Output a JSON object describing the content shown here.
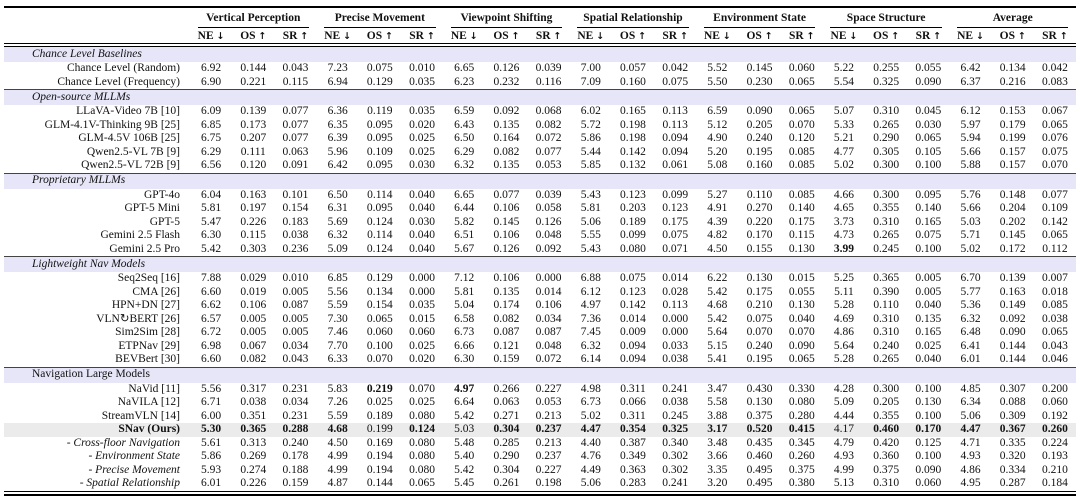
{
  "colors": {
    "section_band": "#e6e6f8",
    "highlight_row": "#ebebeb",
    "rule": "#000000"
  },
  "table": {
    "column_groups": [
      "Vertical Perception",
      "Precise Movement",
      "Viewpoint Shifting",
      "Spatial Relationship",
      "Environment State",
      "Space Structure",
      "Average"
    ],
    "sub_headers": [
      "NE ↓",
      "OS ↑",
      "SR ↑"
    ],
    "sections": [
      {
        "title": "Chance Level Baselines",
        "italic": true,
        "rows": [
          {
            "label": "Chance Level (Random)",
            "values": [
              "6.92",
              "0.144",
              "0.043",
              "7.23",
              "0.075",
              "0.010",
              "6.65",
              "0.126",
              "0.039",
              "7.00",
              "0.057",
              "0.042",
              "5.52",
              "0.145",
              "0.060",
              "5.22",
              "0.255",
              "0.055",
              "6.42",
              "0.134",
              "0.042"
            ],
            "bold": []
          },
          {
            "label": "Chance Level (Frequency)",
            "values": [
              "6.90",
              "0.221",
              "0.115",
              "6.94",
              "0.129",
              "0.035",
              "6.23",
              "0.232",
              "0.116",
              "7.09",
              "0.160",
              "0.075",
              "5.50",
              "0.230",
              "0.065",
              "5.54",
              "0.325",
              "0.090",
              "6.37",
              "0.216",
              "0.083"
            ],
            "bold": []
          }
        ]
      },
      {
        "title": "Open-source MLLMs",
        "italic": true,
        "rows": [
          {
            "label": "LLaVA-Video 7B [10]",
            "values": [
              "6.09",
              "0.139",
              "0.077",
              "6.36",
              "0.119",
              "0.035",
              "6.59",
              "0.092",
              "0.068",
              "6.02",
              "0.165",
              "0.113",
              "6.59",
              "0.090",
              "0.065",
              "5.07",
              "0.310",
              "0.045",
              "6.12",
              "0.153",
              "0.067"
            ],
            "bold": []
          },
          {
            "label": "GLM-4.1V-Thinking 9B [25]",
            "values": [
              "6.85",
              "0.173",
              "0.077",
              "6.35",
              "0.095",
              "0.020",
              "6.43",
              "0.135",
              "0.082",
              "5.72",
              "0.198",
              "0.113",
              "5.12",
              "0.205",
              "0.070",
              "5.33",
              "0.265",
              "0.030",
              "5.97",
              "0.179",
              "0.065"
            ],
            "bold": []
          },
          {
            "label": "GLM-4.5V 106B [25]",
            "values": [
              "6.75",
              "0.207",
              "0.077",
              "6.39",
              "0.095",
              "0.025",
              "6.50",
              "0.164",
              "0.072",
              "5.86",
              "0.198",
              "0.094",
              "4.90",
              "0.240",
              "0.120",
              "5.21",
              "0.290",
              "0.065",
              "5.94",
              "0.199",
              "0.076"
            ],
            "bold": []
          },
          {
            "label": "Qwen2.5-VL 7B [9]",
            "values": [
              "6.29",
              "0.111",
              "0.063",
              "5.96",
              "0.109",
              "0.025",
              "6.29",
              "0.082",
              "0.077",
              "5.44",
              "0.142",
              "0.094",
              "5.20",
              "0.195",
              "0.085",
              "4.77",
              "0.305",
              "0.105",
              "5.66",
              "0.157",
              "0.075"
            ],
            "bold": []
          },
          {
            "label": "Qwen2.5-VL 72B [9]",
            "values": [
              "6.56",
              "0.120",
              "0.091",
              "6.42",
              "0.095",
              "0.030",
              "6.32",
              "0.135",
              "0.053",
              "5.85",
              "0.132",
              "0.061",
              "5.08",
              "0.160",
              "0.085",
              "5.02",
              "0.300",
              "0.100",
              "5.88",
              "0.157",
              "0.070"
            ],
            "bold": []
          }
        ]
      },
      {
        "title": "Proprietary MLLMs",
        "italic": true,
        "rows": [
          {
            "label": "GPT-4o",
            "values": [
              "6.04",
              "0.163",
              "0.101",
              "6.50",
              "0.114",
              "0.040",
              "6.65",
              "0.077",
              "0.039",
              "5.43",
              "0.123",
              "0.099",
              "5.27",
              "0.110",
              "0.085",
              "4.66",
              "0.300",
              "0.095",
              "5.76",
              "0.148",
              "0.077"
            ],
            "bold": []
          },
          {
            "label": "GPT-5 Mini",
            "values": [
              "5.81",
              "0.197",
              "0.154",
              "6.31",
              "0.095",
              "0.040",
              "6.44",
              "0.106",
              "0.058",
              "5.81",
              "0.203",
              "0.123",
              "4.91",
              "0.270",
              "0.140",
              "4.65",
              "0.355",
              "0.140",
              "5.66",
              "0.204",
              "0.109"
            ],
            "bold": []
          },
          {
            "label": "GPT-5",
            "values": [
              "5.47",
              "0.226",
              "0.183",
              "5.69",
              "0.124",
              "0.030",
              "5.82",
              "0.145",
              "0.126",
              "5.06",
              "0.189",
              "0.175",
              "4.39",
              "0.220",
              "0.175",
              "3.73",
              "0.310",
              "0.165",
              "5.03",
              "0.202",
              "0.142"
            ],
            "bold": []
          },
          {
            "label": "Gemini 2.5 Flash",
            "values": [
              "6.30",
              "0.115",
              "0.038",
              "6.32",
              "0.114",
              "0.040",
              "6.51",
              "0.106",
              "0.048",
              "5.55",
              "0.099",
              "0.075",
              "4.82",
              "0.170",
              "0.115",
              "4.73",
              "0.265",
              "0.075",
              "5.71",
              "0.145",
              "0.065"
            ],
            "bold": []
          },
          {
            "label": "Gemini 2.5 Pro",
            "values": [
              "5.42",
              "0.303",
              "0.236",
              "5.09",
              "0.124",
              "0.040",
              "5.67",
              "0.126",
              "0.092",
              "5.43",
              "0.080",
              "0.071",
              "4.50",
              "0.155",
              "0.130",
              "3.99",
              "0.245",
              "0.100",
              "5.02",
              "0.172",
              "0.112"
            ],
            "bold": [
              15
            ]
          }
        ]
      },
      {
        "title": "Lightweight Nav Models",
        "italic": true,
        "rows": [
          {
            "label": "Seq2Seq [16]",
            "values": [
              "7.88",
              "0.029",
              "0.010",
              "6.85",
              "0.129",
              "0.000",
              "7.12",
              "0.106",
              "0.000",
              "6.88",
              "0.075",
              "0.014",
              "6.22",
              "0.130",
              "0.015",
              "5.25",
              "0.365",
              "0.005",
              "6.70",
              "0.139",
              "0.007"
            ],
            "bold": []
          },
          {
            "label": "CMA [26]",
            "values": [
              "6.60",
              "0.019",
              "0.005",
              "5.56",
              "0.134",
              "0.000",
              "5.81",
              "0.135",
              "0.014",
              "6.12",
              "0.123",
              "0.028",
              "5.42",
              "0.175",
              "0.055",
              "5.11",
              "0.390",
              "0.005",
              "5.77",
              "0.163",
              "0.018"
            ],
            "bold": []
          },
          {
            "label": "HPN+DN [27]",
            "values": [
              "6.62",
              "0.106",
              "0.087",
              "5.59",
              "0.154",
              "0.035",
              "5.04",
              "0.174",
              "0.106",
              "4.97",
              "0.142",
              "0.113",
              "4.68",
              "0.210",
              "0.130",
              "5.28",
              "0.110",
              "0.040",
              "5.36",
              "0.149",
              "0.085"
            ],
            "bold": []
          },
          {
            "label": "VLN↻BERT [26]",
            "values": [
              "6.57",
              "0.005",
              "0.005",
              "7.30",
              "0.065",
              "0.015",
              "6.58",
              "0.082",
              "0.034",
              "7.36",
              "0.014",
              "0.000",
              "5.42",
              "0.075",
              "0.040",
              "4.69",
              "0.310",
              "0.135",
              "6.32",
              "0.092",
              "0.038"
            ],
            "bold": []
          },
          {
            "label": "Sim2Sim [28]",
            "values": [
              "6.72",
              "0.005",
              "0.005",
              "7.46",
              "0.060",
              "0.060",
              "6.73",
              "0.087",
              "0.087",
              "7.45",
              "0.009",
              "0.000",
              "5.64",
              "0.070",
              "0.070",
              "4.86",
              "0.310",
              "0.165",
              "6.48",
              "0.090",
              "0.065"
            ],
            "bold": []
          },
          {
            "label": "ETPNav [29]",
            "values": [
              "6.98",
              "0.067",
              "0.034",
              "7.70",
              "0.100",
              "0.025",
              "6.66",
              "0.121",
              "0.048",
              "6.32",
              "0.094",
              "0.033",
              "5.15",
              "0.240",
              "0.090",
              "5.64",
              "0.240",
              "0.025",
              "6.41",
              "0.144",
              "0.043"
            ],
            "bold": []
          },
          {
            "label": "BEVBert [30]",
            "values": [
              "6.60",
              "0.082",
              "0.043",
              "6.33",
              "0.070",
              "0.020",
              "6.30",
              "0.159",
              "0.072",
              "6.14",
              "0.094",
              "0.038",
              "5.41",
              "0.195",
              "0.065",
              "5.28",
              "0.265",
              "0.040",
              "6.01",
              "0.144",
              "0.046"
            ],
            "bold": []
          }
        ]
      },
      {
        "title": "Navigation Large Models",
        "italic": false,
        "rows": [
          {
            "label": "NaVid [11]",
            "values": [
              "5.56",
              "0.317",
              "0.231",
              "5.83",
              "0.219",
              "0.070",
              "4.97",
              "0.266",
              "0.227",
              "4.98",
              "0.311",
              "0.241",
              "3.47",
              "0.430",
              "0.330",
              "4.28",
              "0.300",
              "0.100",
              "4.85",
              "0.307",
              "0.200"
            ],
            "bold": [
              4,
              6
            ]
          },
          {
            "label": "NaVILA [12]",
            "values": [
              "6.71",
              "0.038",
              "0.034",
              "7.26",
              "0.025",
              "0.025",
              "6.64",
              "0.063",
              "0.053",
              "6.73",
              "0.066",
              "0.038",
              "5.58",
              "0.130",
              "0.080",
              "5.09",
              "0.205",
              "0.130",
              "6.34",
              "0.088",
              "0.060"
            ],
            "bold": []
          },
          {
            "label": "StreamVLN [14]",
            "values": [
              "6.00",
              "0.351",
              "0.231",
              "5.59",
              "0.189",
              "0.080",
              "5.42",
              "0.271",
              "0.213",
              "5.02",
              "0.311",
              "0.245",
              "3.88",
              "0.375",
              "0.280",
              "4.44",
              "0.355",
              "0.100",
              "5.06",
              "0.309",
              "0.192"
            ],
            "bold": []
          },
          {
            "label": "SNav (Ours)",
            "label_bold": true,
            "highlight": true,
            "values": [
              "5.30",
              "0.365",
              "0.288",
              "4.68",
              "0.199",
              "0.124",
              "5.03",
              "0.304",
              "0.237",
              "4.47",
              "0.354",
              "0.325",
              "3.17",
              "0.520",
              "0.415",
              "4.17",
              "0.460",
              "0.170",
              "4.47",
              "0.367",
              "0.260"
            ],
            "bold": [
              0,
              1,
              2,
              3,
              5,
              7,
              8,
              9,
              10,
              11,
              12,
              13,
              14,
              16,
              17,
              18,
              19,
              20
            ]
          },
          {
            "label": "- Cross-floor Navigation",
            "italic": true,
            "values": [
              "5.61",
              "0.313",
              "0.240",
              "4.50",
              "0.169",
              "0.080",
              "5.48",
              "0.285",
              "0.213",
              "4.40",
              "0.387",
              "0.340",
              "3.48",
              "0.435",
              "0.345",
              "4.79",
              "0.420",
              "0.125",
              "4.71",
              "0.335",
              "0.224"
            ],
            "bold": []
          },
          {
            "label": "- Environment State",
            "italic": true,
            "values": [
              "5.86",
              "0.269",
              "0.178",
              "4.99",
              "0.194",
              "0.080",
              "5.40",
              "0.290",
              "0.237",
              "4.76",
              "0.349",
              "0.302",
              "3.66",
              "0.460",
              "0.260",
              "4.93",
              "0.360",
              "0.100",
              "4.93",
              "0.320",
              "0.193"
            ],
            "bold": []
          },
          {
            "label": "- Precise Movement",
            "italic": true,
            "values": [
              "5.93",
              "0.274",
              "0.188",
              "4.99",
              "0.194",
              "0.080",
              "5.42",
              "0.304",
              "0.227",
              "4.49",
              "0.363",
              "0.302",
              "3.35",
              "0.495",
              "0.375",
              "4.99",
              "0.375",
              "0.090",
              "4.86",
              "0.334",
              "0.210"
            ],
            "bold": []
          },
          {
            "label": "- Spatial Relationship",
            "italic": true,
            "values": [
              "6.01",
              "0.226",
              "0.159",
              "4.87",
              "0.144",
              "0.065",
              "5.45",
              "0.261",
              "0.198",
              "5.06",
              "0.283",
              "0.241",
              "3.20",
              "0.495",
              "0.380",
              "5.13",
              "0.310",
              "0.060",
              "4.95",
              "0.287",
              "0.184"
            ],
            "bold": []
          }
        ]
      }
    ]
  }
}
